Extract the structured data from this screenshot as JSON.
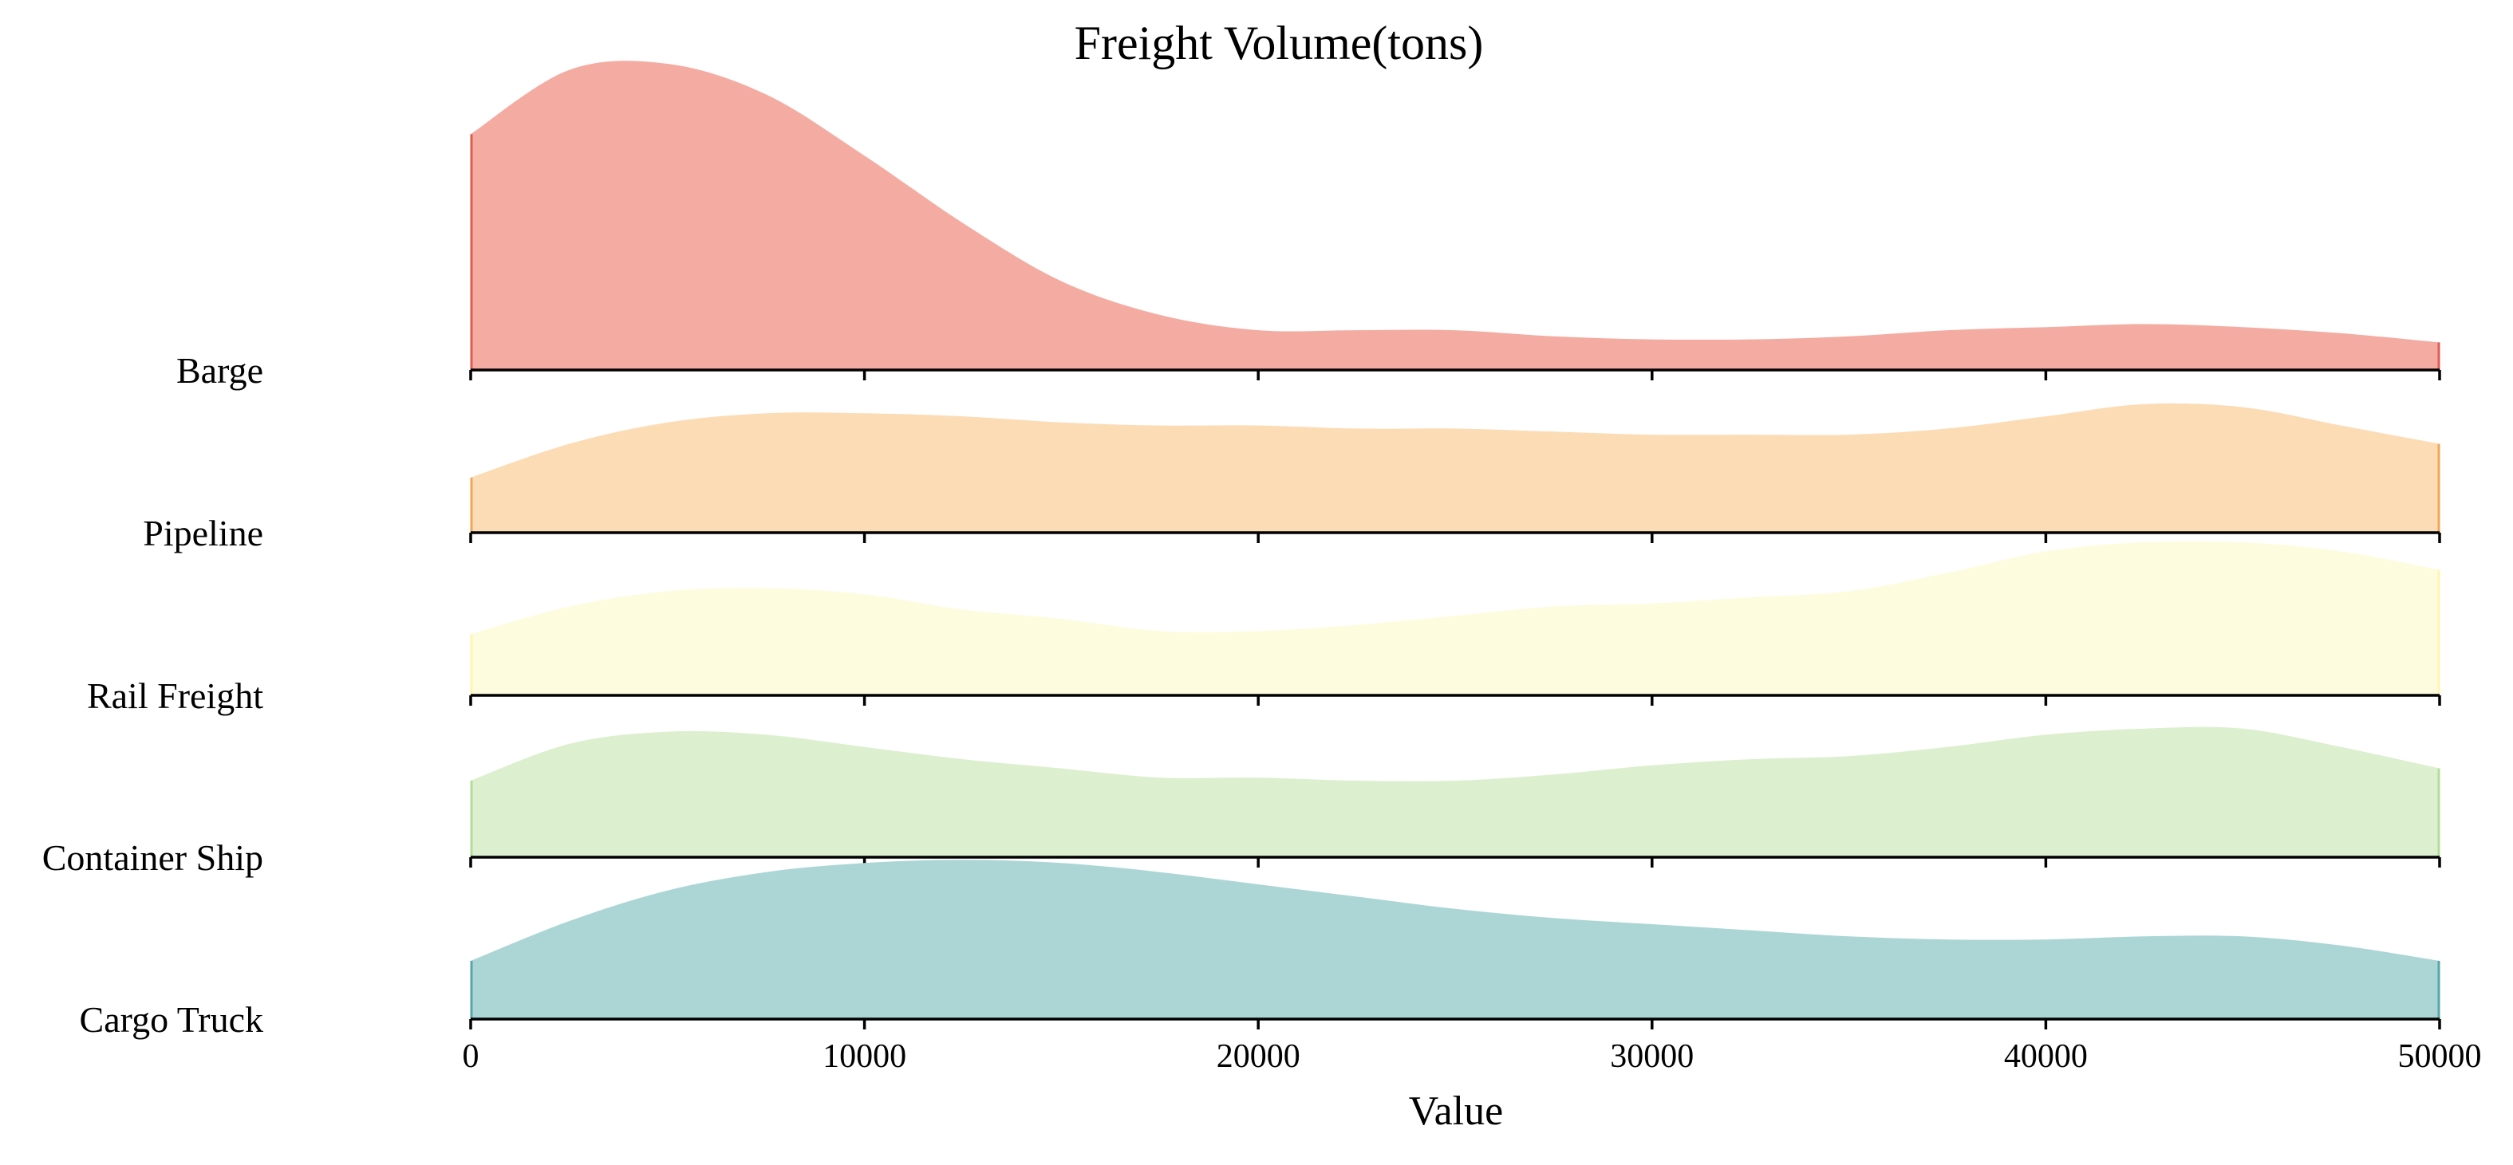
{
  "chart_data": {
    "type": "area",
    "subtype": "ridgeline-density",
    "title": "Freight Volume(tons)",
    "xlabel": "Value",
    "ylabel": "",
    "xlim": [
      0,
      50000
    ],
    "x_ticks": [
      0,
      10000,
      20000,
      30000,
      40000,
      50000
    ],
    "x_tick_labels": [
      "0",
      "10000",
      "20000",
      "30000",
      "40000",
      "50000"
    ],
    "grid": false,
    "legend": "none",
    "x": [
      0,
      2500,
      5000,
      7500,
      10000,
      12500,
      15000,
      17500,
      20000,
      22500,
      25000,
      27500,
      30000,
      32500,
      35000,
      37500,
      40000,
      42500,
      45000,
      47500,
      50000
    ],
    "series": [
      {
        "name": "Barge",
        "color": "#f4aca2",
        "line_color": "#e05c50",
        "values": [
          0.77,
          0.98,
          1.0,
          0.9,
          0.7,
          0.48,
          0.29,
          0.18,
          0.13,
          0.13,
          0.13,
          0.11,
          0.1,
          0.1,
          0.11,
          0.13,
          0.14,
          0.15,
          0.14,
          0.12,
          0.09
        ]
      },
      {
        "name": "Pipeline",
        "color": "#fcdcb5",
        "line_color": "#f2a65a",
        "values": [
          0.18,
          0.29,
          0.36,
          0.39,
          0.39,
          0.38,
          0.36,
          0.35,
          0.35,
          0.34,
          0.34,
          0.33,
          0.32,
          0.32,
          0.32,
          0.34,
          0.38,
          0.42,
          0.41,
          0.35,
          0.29
        ]
      },
      {
        "name": "Rail Freight",
        "color": "#fefcde",
        "line_color": "#fff6b0",
        "values": [
          0.2,
          0.29,
          0.34,
          0.35,
          0.33,
          0.28,
          0.25,
          0.21,
          0.21,
          0.23,
          0.26,
          0.29,
          0.3,
          0.32,
          0.34,
          0.4,
          0.47,
          0.5,
          0.5,
          0.47,
          0.41
        ]
      },
      {
        "name": "Container Ship",
        "color": "#dcefcf",
        "line_color": "#b4dc9b",
        "values": [
          0.25,
          0.37,
          0.41,
          0.4,
          0.36,
          0.32,
          0.29,
          0.26,
          0.26,
          0.25,
          0.25,
          0.27,
          0.3,
          0.32,
          0.33,
          0.36,
          0.4,
          0.42,
          0.42,
          0.36,
          0.29
        ]
      },
      {
        "name": "Cargo Truck",
        "color": "#acd6d5",
        "line_color": "#58a7a7",
        "values": [
          0.19,
          0.32,
          0.42,
          0.48,
          0.51,
          0.52,
          0.51,
          0.48,
          0.44,
          0.4,
          0.36,
          0.33,
          0.31,
          0.29,
          0.27,
          0.26,
          0.26,
          0.27,
          0.27,
          0.24,
          0.19
        ]
      }
    ]
  }
}
